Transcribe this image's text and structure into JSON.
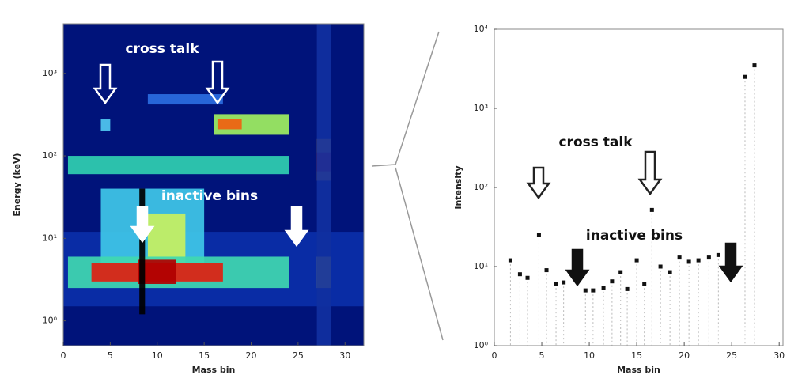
{
  "chart_data": [
    {
      "type": "heatmap",
      "xlabel": "Mass bin",
      "ylabel": "Energy (keV)",
      "log_y": true,
      "xlim": [
        0,
        32
      ],
      "ylim": [
        0.5,
        4000
      ],
      "xticks": [
        0,
        5,
        10,
        15,
        20,
        25,
        30
      ],
      "yticks": [
        {
          "value": 1,
          "label": "10⁰"
        },
        {
          "value": 10,
          "label": "10¹"
        },
        {
          "value": 100,
          "label": "10²"
        },
        {
          "value": 1000,
          "label": "10³"
        }
      ],
      "background": "#00137a",
      "regions": [
        {
          "x": [
            0,
            32
          ],
          "y": [
            1.5,
            12
          ],
          "color": "#0a2fa8"
        },
        {
          "x": [
            4,
            15
          ],
          "y": [
            5,
            40
          ],
          "color": "#3fc8e8"
        },
        {
          "x": [
            9,
            13
          ],
          "y": [
            5,
            20
          ],
          "color": "#c8f060"
        },
        {
          "x": [
            0.5,
            24
          ],
          "y": [
            2.5,
            6
          ],
          "color": "#40d8b0"
        },
        {
          "x": [
            3,
            17
          ],
          "y": [
            3,
            5
          ],
          "color": "#e02010"
        },
        {
          "x": [
            8,
            12
          ],
          "y": [
            2.8,
            5.5
          ],
          "color": "#b00000"
        },
        {
          "x": [
            0.5,
            24
          ],
          "y": [
            60,
            100
          ],
          "color": "#30d0b0"
        },
        {
          "x": [
            16,
            24
          ],
          "y": [
            180,
            320
          ],
          "color": "#a0f060"
        },
        {
          "x": [
            16.5,
            19
          ],
          "y": [
            210,
            280
          ],
          "color": "#f06010"
        },
        {
          "x": [
            9,
            17
          ],
          "y": [
            420,
            560
          ],
          "color": "#2a6de0"
        },
        {
          "x": [
            4,
            5
          ],
          "y": [
            200,
            280
          ],
          "color": "#50c8f0"
        },
        {
          "x": [
            27,
            28.5
          ],
          "y": [
            50,
            160
          ],
          "color": "#f0a020"
        },
        {
          "x": [
            27,
            28.5
          ],
          "y": [
            65,
            110
          ],
          "color": "#d01010"
        },
        {
          "x": [
            27,
            28.5
          ],
          "y": [
            2.5,
            6
          ],
          "color": "#f0e040"
        },
        {
          "x": [
            27,
            28.5
          ],
          "y": [
            0.5,
            4000
          ],
          "color": "#1030a0"
        },
        {
          "x": [
            8.1,
            8.7
          ],
          "y": [
            1.2,
            40
          ],
          "color": "#000000"
        }
      ],
      "annotations": [
        "cross talk",
        "inactive bins"
      ]
    },
    {
      "type": "scatter",
      "xlabel": "Mass bin",
      "ylabel": "Intensity",
      "log_y": true,
      "xlim": [
        0,
        30.4
      ],
      "ylim": [
        1,
        10000
      ],
      "xticks": [
        0,
        5,
        10,
        15,
        20,
        25,
        30
      ],
      "yticks": [
        {
          "value": 1,
          "label": "10⁰"
        },
        {
          "value": 10,
          "label": "10¹"
        },
        {
          "value": 100,
          "label": "10²"
        },
        {
          "value": 1000,
          "label": "10³"
        },
        {
          "value": 10000,
          "label": "10⁴"
        }
      ],
      "color": "#111111",
      "x": [
        1.7,
        2.7,
        3.5,
        4.7,
        5.5,
        6.5,
        7.3,
        9.6,
        10.4,
        11.5,
        12.4,
        13.3,
        14.0,
        15.0,
        15.8,
        16.6,
        17.5,
        18.5,
        19.5,
        20.5,
        21.5,
        22.6,
        23.6,
        26.4,
        27.4
      ],
      "values": [
        12,
        8,
        7.2,
        25,
        9,
        6,
        6.3,
        5,
        5,
        5.4,
        6.5,
        8.5,
        5.2,
        12,
        6,
        52,
        10,
        8.5,
        13,
        11.5,
        12,
        13,
        14,
        2500,
        3500
      ],
      "annotations": [
        "cross talk",
        "inactive bins"
      ]
    }
  ]
}
